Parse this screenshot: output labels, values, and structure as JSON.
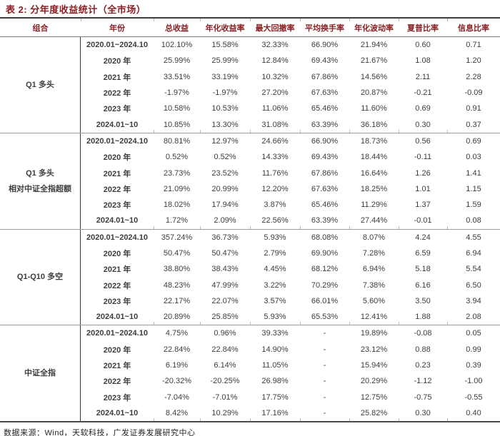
{
  "title": "表 2: 分年度收益统计（全市场）",
  "source": "数据来源：Wind，天软科技，广发证券发展研究中心",
  "colors": {
    "accent_red": "#8b1e22",
    "text_gray": "#3d3d3d",
    "rule_dark": "#3f3f3f",
    "rule_light": "#9b9b9b"
  },
  "table": {
    "columns": [
      "组合",
      "年份",
      "总收益",
      "年化收益率",
      "最大回撤率",
      "平均换手率",
      "年化波动率",
      "夏普比率",
      "信息比率"
    ],
    "groups": [
      {
        "label": [
          "Q1 多头"
        ],
        "rows": [
          {
            "year": "2020.01~2024.10",
            "values": [
              "102.10%",
              "15.58%",
              "32.33%",
              "66.90%",
              "21.94%",
              "0.60",
              "0.71"
            ]
          },
          {
            "year": "2020 年",
            "values": [
              "25.99%",
              "25.99%",
              "12.84%",
              "69.43%",
              "21.67%",
              "1.08",
              "1.20"
            ]
          },
          {
            "year": "2021 年",
            "values": [
              "33.51%",
              "33.19%",
              "10.32%",
              "67.86%",
              "14.56%",
              "2.11",
              "2.28"
            ]
          },
          {
            "year": "2022 年",
            "values": [
              "-1.97%",
              "-1.97%",
              "27.20%",
              "67.63%",
              "20.87%",
              "-0.21",
              "-0.09"
            ]
          },
          {
            "year": "2023 年",
            "values": [
              "10.58%",
              "10.53%",
              "11.06%",
              "65.46%",
              "11.60%",
              "0.69",
              "0.91"
            ]
          },
          {
            "year": "2024.01~10",
            "values": [
              "10.85%",
              "13.30%",
              "31.08%",
              "63.39%",
              "36.18%",
              "0.30",
              "0.37"
            ]
          }
        ]
      },
      {
        "label": [
          "Q1 多头",
          "相对中证全指超额"
        ],
        "rows": [
          {
            "year": "2020.01~2024.10",
            "values": [
              "80.81%",
              "12.97%",
              "24.66%",
              "66.90%",
              "18.73%",
              "0.56",
              "0.69"
            ]
          },
          {
            "year": "2020 年",
            "values": [
              "0.52%",
              "0.52%",
              "14.33%",
              "69.43%",
              "18.44%",
              "-0.11",
              "0.03"
            ]
          },
          {
            "year": "2021 年",
            "values": [
              "23.73%",
              "23.52%",
              "11.76%",
              "67.86%",
              "16.64%",
              "1.26",
              "1.41"
            ]
          },
          {
            "year": "2022 年",
            "values": [
              "21.09%",
              "20.99%",
              "12.20%",
              "67.63%",
              "18.25%",
              "1.01",
              "1.15"
            ]
          },
          {
            "year": "2023 年",
            "values": [
              "18.02%",
              "17.94%",
              "3.87%",
              "65.46%",
              "11.29%",
              "1.37",
              "1.59"
            ]
          },
          {
            "year": "2024.01~10",
            "values": [
              "1.72%",
              "2.09%",
              "22.56%",
              "63.39%",
              "27.44%",
              "-0.01",
              "0.08"
            ]
          }
        ]
      },
      {
        "label": [
          "Q1-Q10 多空"
        ],
        "rows": [
          {
            "year": "2020.01~2024.10",
            "values": [
              "357.24%",
              "36.73%",
              "5.93%",
              "68.08%",
              "8.07%",
              "4.24",
              "4.55"
            ]
          },
          {
            "year": "2020 年",
            "values": [
              "50.47%",
              "50.47%",
              "2.79%",
              "69.90%",
              "7.28%",
              "6.59",
              "6.94"
            ]
          },
          {
            "year": "2021 年",
            "values": [
              "38.80%",
              "38.43%",
              "4.45%",
              "68.12%",
              "6.94%",
              "5.18",
              "5.54"
            ]
          },
          {
            "year": "2022 年",
            "values": [
              "48.23%",
              "47.99%",
              "3.22%",
              "70.29%",
              "7.38%",
              "6.16",
              "6.50"
            ]
          },
          {
            "year": "2023 年",
            "values": [
              "22.17%",
              "22.07%",
              "3.57%",
              "66.01%",
              "5.60%",
              "3.50",
              "3.94"
            ]
          },
          {
            "year": "2024.01~10",
            "values": [
              "20.89%",
              "25.85%",
              "5.93%",
              "65.53%",
              "12.41%",
              "1.88",
              "2.08"
            ]
          }
        ]
      },
      {
        "label": [
          "中证全指"
        ],
        "rows": [
          {
            "year": "2020.01~2024.10",
            "values": [
              "4.75%",
              "0.96%",
              "39.33%",
              "-",
              "19.89%",
              "-0.08",
              "0.05"
            ]
          },
          {
            "year": "2020 年",
            "values": [
              "22.84%",
              "22.84%",
              "14.90%",
              "-",
              "23.12%",
              "0.88",
              "0.99"
            ]
          },
          {
            "year": "2021 年",
            "values": [
              "6.19%",
              "6.14%",
              "11.05%",
              "-",
              "15.94%",
              "0.23",
              "0.39"
            ]
          },
          {
            "year": "2022 年",
            "values": [
              "-20.32%",
              "-20.25%",
              "26.98%",
              "-",
              "20.29%",
              "-1.12",
              "-1.00"
            ]
          },
          {
            "year": "2023 年",
            "values": [
              "-7.04%",
              "-7.01%",
              "17.75%",
              "-",
              "12.75%",
              "-0.75",
              "-0.55"
            ]
          },
          {
            "year": "2024.01~10",
            "values": [
              "8.42%",
              "10.29%",
              "17.16%",
              "-",
              "25.82%",
              "0.30",
              "0.40"
            ]
          }
        ]
      }
    ]
  }
}
